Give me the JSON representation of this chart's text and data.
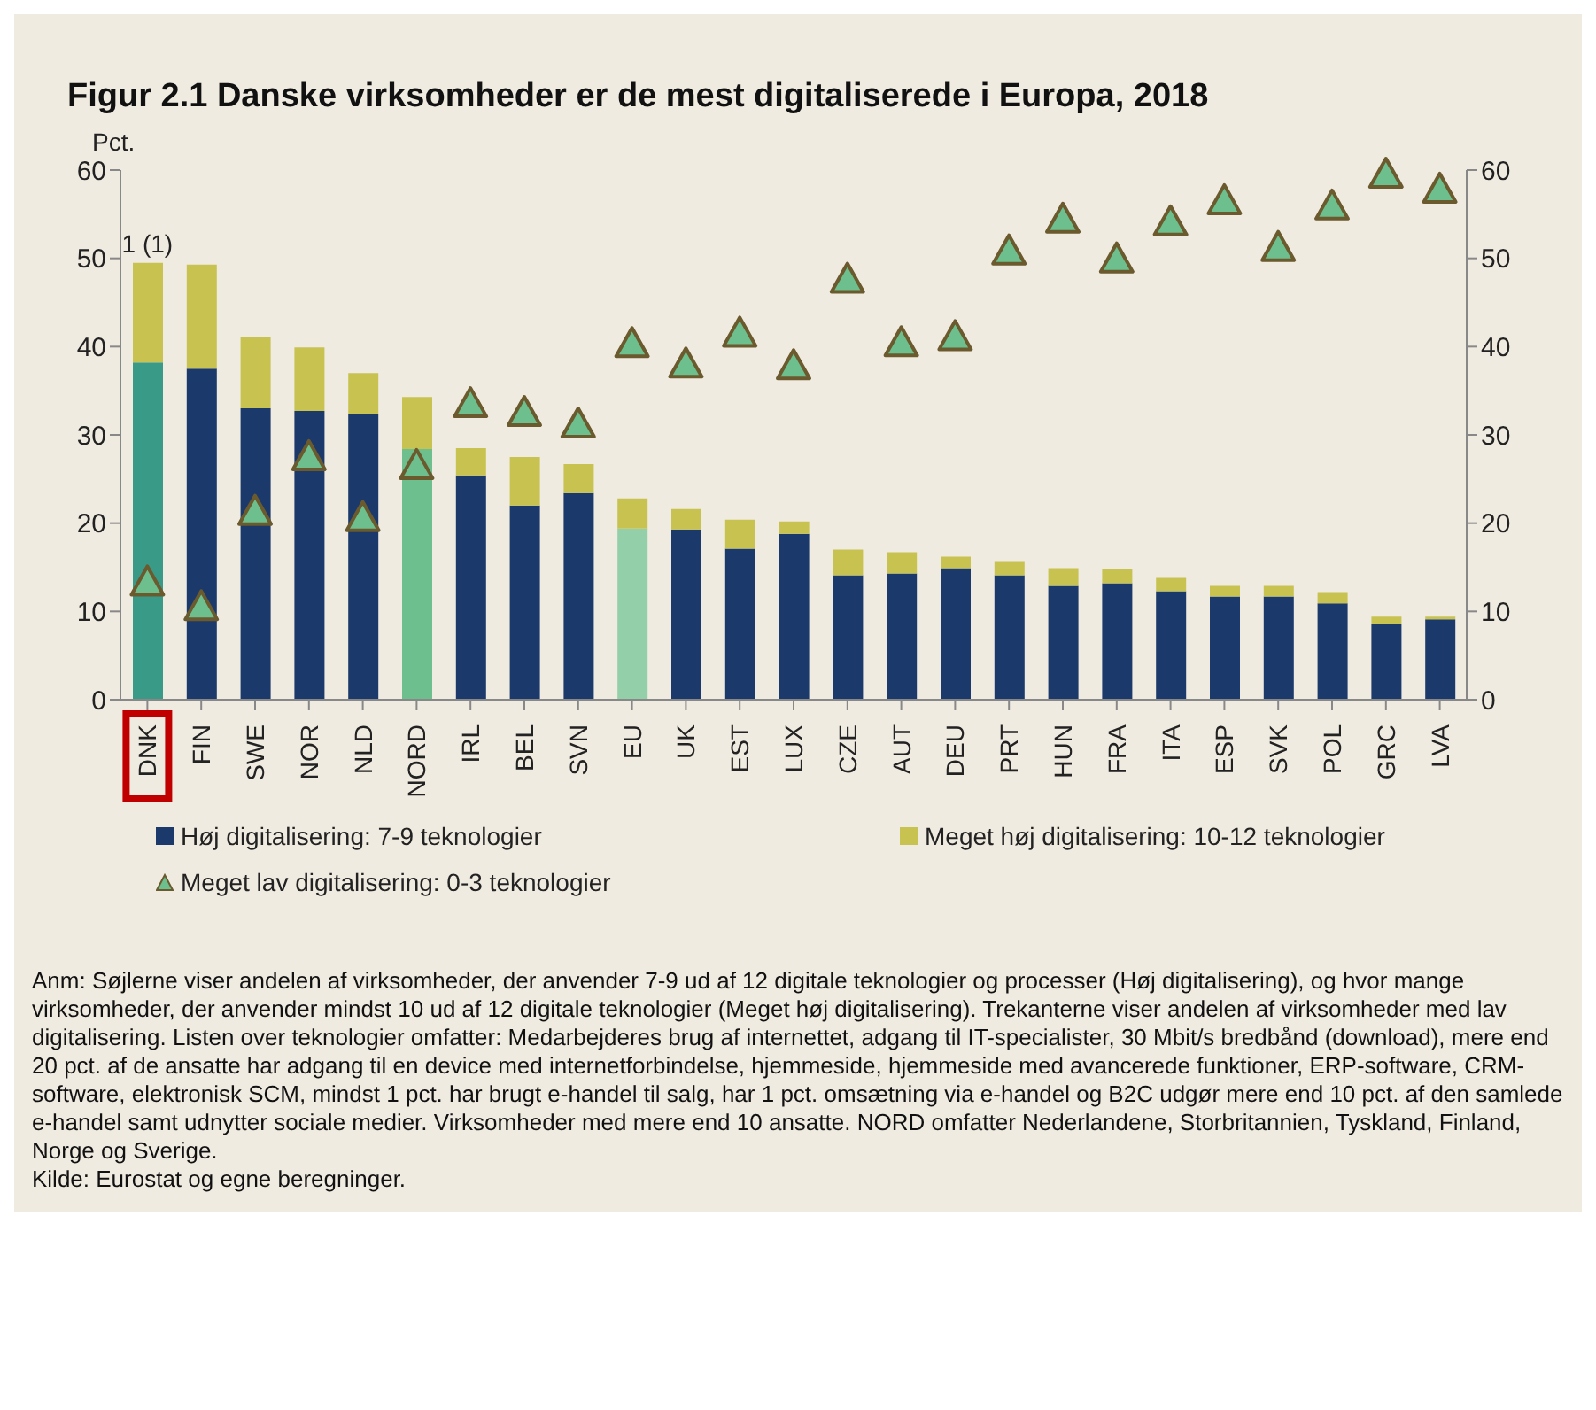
{
  "chart_data": {
    "type": "bar",
    "title": "Figur 2.1 Danske virksomheder er de mest digitaliserede i Europa, 2018",
    "ylabel": "Pct.",
    "categories": [
      "DNK",
      "FIN",
      "SWE",
      "NOR",
      "NLD",
      "NORD",
      "IRL",
      "BEL",
      "SVN",
      "EU",
      "UK",
      "EST",
      "LUX",
      "CZE",
      "AUT",
      "DEU",
      "PRT",
      "HUN",
      "FRA",
      "ITA",
      "ESP",
      "SVK",
      "POL",
      "GRC",
      "LVA"
    ],
    "stacked": true,
    "series": [
      {
        "name": "Høj digitalisering: 7-9 teknologier",
        "color": "#1b3a6b",
        "colors": [
          "#3a9a88",
          "#1b3a6b",
          "#1b3a6b",
          "#1b3a6b",
          "#1b3a6b",
          "#6dbf8d",
          "#1b3a6b",
          "#1b3a6b",
          "#1b3a6b",
          "#93cfa8",
          "#1b3a6b",
          "#1b3a6b",
          "#1b3a6b",
          "#1b3a6b",
          "#1b3a6b",
          "#1b3a6b",
          "#1b3a6b",
          "#1b3a6b",
          "#1b3a6b",
          "#1b3a6b",
          "#1b3a6b",
          "#1b3a6b",
          "#1b3a6b",
          "#1b3a6b",
          "#1b3a6b"
        ],
        "values": [
          38.2,
          37.5,
          33.0,
          32.7,
          32.4,
          28.4,
          25.4,
          22.0,
          23.4,
          19.4,
          19.3,
          17.1,
          18.8,
          14.1,
          14.3,
          14.9,
          14.1,
          12.9,
          13.2,
          12.3,
          11.7,
          11.7,
          10.9,
          8.6,
          9.1
        ]
      },
      {
        "name": "Meget høj digitalisering: 10-12 teknologier",
        "color": "#c8c350",
        "values": [
          11.3,
          11.8,
          8.1,
          7.2,
          4.6,
          5.9,
          3.1,
          5.5,
          3.3,
          3.4,
          2.3,
          3.3,
          1.4,
          2.9,
          2.4,
          1.3,
          1.6,
          2.0,
          1.6,
          1.5,
          1.2,
          1.2,
          1.3,
          0.8,
          0.3
        ]
      },
      {
        "name": "Meget lav digitalisering: 0-3 teknologier",
        "type": "scatter",
        "axis": "y2",
        "marker": "triangle",
        "color": "#6dbf8d",
        "values": [
          13.5,
          10.7,
          21.5,
          27.7,
          20.8,
          26.7,
          33.7,
          32.7,
          31.4,
          40.5,
          38.2,
          41.7,
          38.0,
          47.8,
          40.6,
          41.3,
          51.0,
          54.6,
          50.1,
          54.3,
          56.7,
          51.4,
          56.1,
          59.7,
          58.0
        ]
      }
    ],
    "ylim": [
      0,
      60
    ],
    "yticks": [
      0,
      10,
      20,
      30,
      40,
      50,
      60
    ],
    "y2lim": [
      0,
      60
    ],
    "y2ticks": [
      0,
      10,
      20,
      30,
      40,
      50,
      60
    ],
    "grid": false,
    "legend": "bottom",
    "annotations": [
      {
        "text": "1 (1)",
        "x": "DNK",
        "y": 49.5
      },
      "Anm: Søjlerne viser andelen af virksomheder, der anvender 7-9 ud af 12 digitale teknologier og processer (Høj digitalisering), og hvor mange virksomheder, der anvender mindst 10 ud af 12 digitale teknologier (Meget høj digitalisering). Trekanterne viser andelen af virksomheder med lav digitalisering. Listen over teknologier omfatter: Medarbejderes brug af internettet, adgang til IT-specialister, 30 Mbit/s bredbånd (download), mere end 20 pct. af de ansatte har adgang til en device med internetforbindelse, hjemmeside, hjemmeside med avancerede funktioner, ERP-software, CRM-software, elektronisk SCM, mindst 1 pct. har brugt e-handel til salg, har 1 pct. omsætning via e-handel og B2C udgør mere end 10 pct. af den samlede e-handel samt udnytter sociale medier. Virksomheder med mere end 10 ansatte. NORD omfatter Nederlandene, Storbritannien, Tyskland, Finland, Norge og Sverige.",
      "Kilde: Eurostat og egne beregninger."
    ]
  }
}
